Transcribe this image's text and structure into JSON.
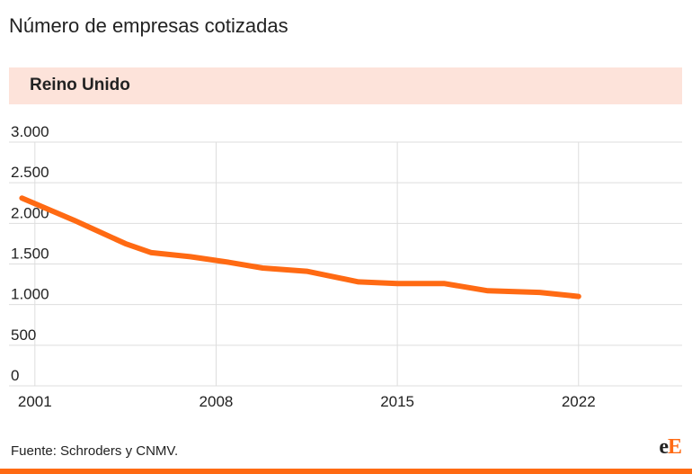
{
  "page": {
    "title": "Número de empresas cotizadas",
    "source": "Fuente: Schroders y CNMV.",
    "logo": {
      "first": "e",
      "second": "E"
    },
    "colors": {
      "line": "#ff6a13",
      "header_bg": "#fde3da",
      "grid": "#dddddd",
      "bottom_bar": "#ff6a13"
    }
  },
  "chart_data": {
    "type": "line",
    "title": "Reino Unido",
    "xlabel": "",
    "ylabel": "",
    "xlim": [
      2000,
      2026
    ],
    "ylim": [
      0,
      3000
    ],
    "grid": true,
    "legend": "none",
    "x_ticks": [
      {
        "value": 2001,
        "label": "2001"
      },
      {
        "value": 2008,
        "label": "2008"
      },
      {
        "value": 2015,
        "label": "2015"
      },
      {
        "value": 2022,
        "label": "2022"
      }
    ],
    "y_ticks": [
      {
        "value": 0,
        "label": "0"
      },
      {
        "value": 500,
        "label": "500"
      },
      {
        "value": 1000,
        "label": "1.000"
      },
      {
        "value": 1500,
        "label": "1.500"
      },
      {
        "value": 2000,
        "label": "2.000"
      },
      {
        "value": 2500,
        "label": "2.500"
      },
      {
        "value": 3000,
        "label": "3.000"
      }
    ],
    "series": [
      {
        "color": "#ff6a13",
        "x": [
          2000.5,
          2002.5,
          2004.5,
          2005.5,
          2007,
          2008.5,
          2009.8,
          2011.5,
          2013.5,
          2015,
          2016.8,
          2018.5,
          2020.5,
          2022
        ],
        "values": [
          2310,
          2040,
          1750,
          1640,
          1590,
          1520,
          1450,
          1410,
          1280,
          1260,
          1260,
          1170,
          1150,
          1100
        ]
      }
    ]
  }
}
